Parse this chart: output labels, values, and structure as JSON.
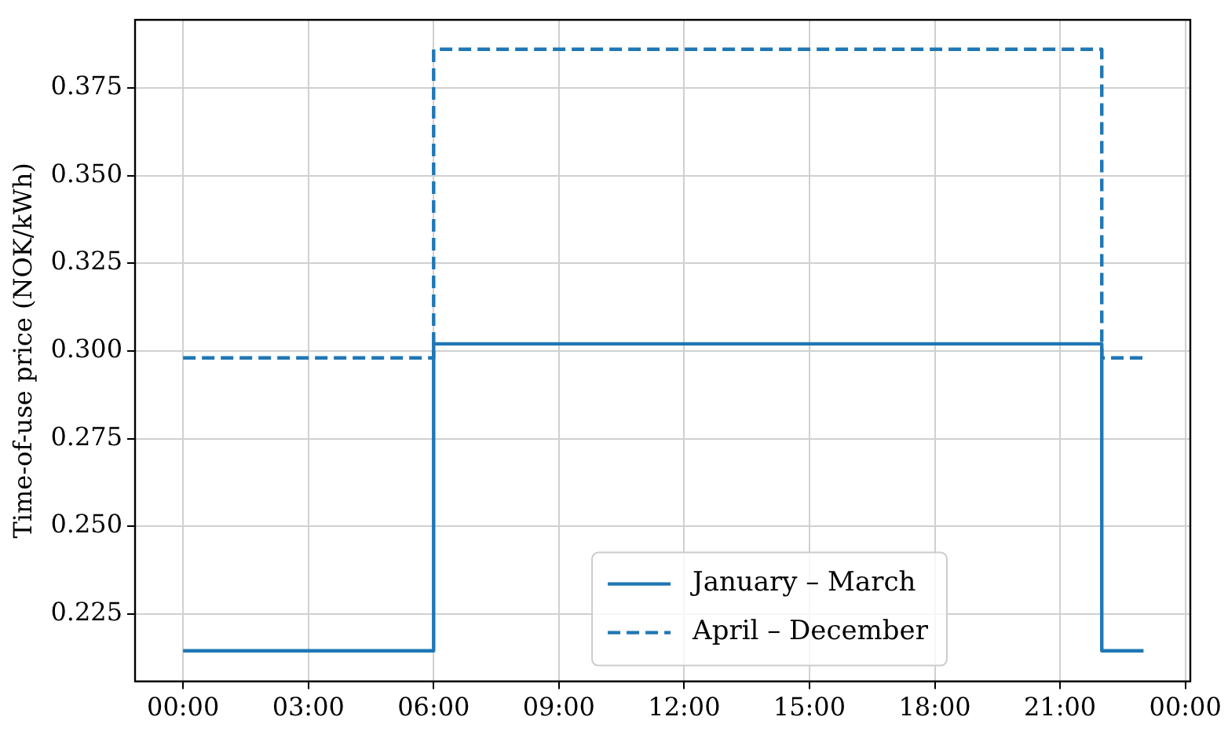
{
  "chart_data": {
    "type": "step",
    "ylabel": "Time-of-use price (NOK/kWh)",
    "x": [
      0,
      6,
      22,
      23
    ],
    "series": [
      {
        "name": "January – March",
        "color": "#1f77b4",
        "line_style": "solid",
        "values": [
          0.2145,
          0.302,
          0.2145,
          0.2145
        ]
      },
      {
        "name": "April – December",
        "color": "#1f77b4",
        "line_style": "dashed",
        "values": [
          0.298,
          0.386,
          0.298,
          0.298
        ]
      }
    ],
    "xlim": [
      -1.15,
      24.12
    ],
    "xticks": [
      {
        "value": 0,
        "label": "00:00"
      },
      {
        "value": 3,
        "label": "03:00"
      },
      {
        "value": 6,
        "label": "06:00"
      },
      {
        "value": 9,
        "label": "09:00"
      },
      {
        "value": 12,
        "label": "12:00"
      },
      {
        "value": 15,
        "label": "15:00"
      },
      {
        "value": 18,
        "label": "18:00"
      },
      {
        "value": 21,
        "label": "21:00"
      },
      {
        "value": 24,
        "label": "00:00"
      }
    ],
    "ylim": [
      0.2058,
      0.3944
    ],
    "yticks": [
      0.225,
      {
        "value": 0.25,
        "label": "0.250"
      },
      0.275,
      {
        "value": 0.3,
        "label": "0.300"
      },
      0.325,
      {
        "value": 0.35,
        "label": "0.350"
      },
      0.375
    ],
    "grid": true,
    "legend": "bottom",
    "marker": "none"
  }
}
